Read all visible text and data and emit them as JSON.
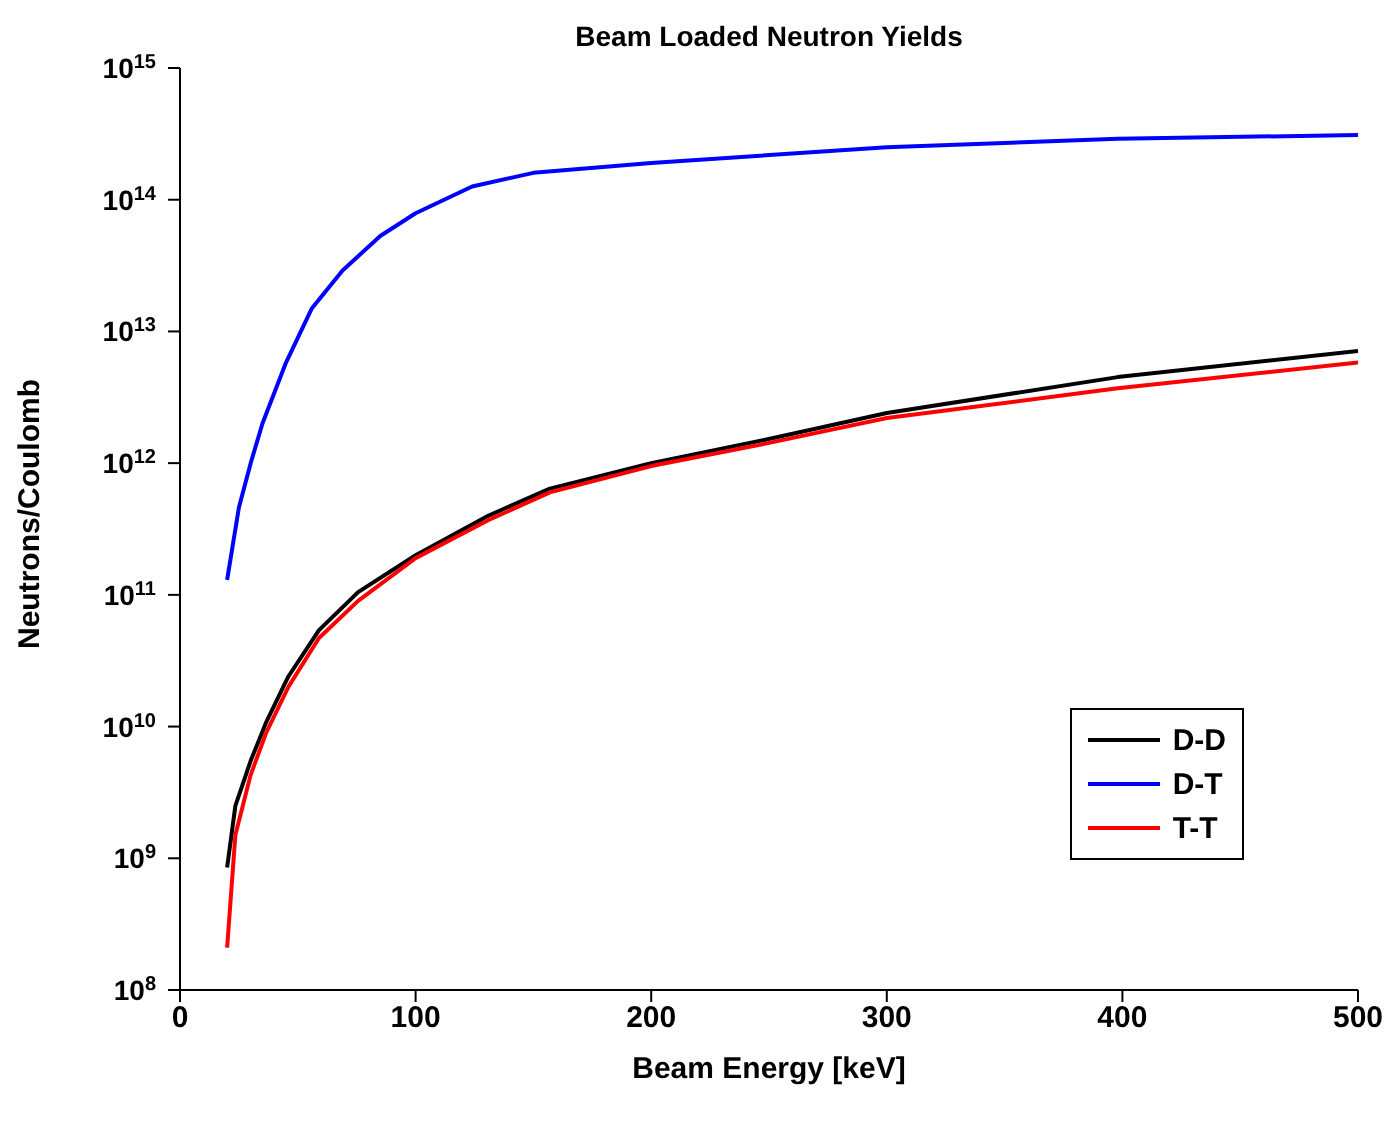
{
  "chart_data": {
    "type": "line",
    "title": "Beam Loaded Neutron Yields",
    "xlabel": "Beam Energy [keV]",
    "ylabel": "Neutrons/Coulomb",
    "log": "y",
    "grid": false,
    "legend": "bottom right",
    "line_style": "solid",
    "marker": "none",
    "xlim": [
      0,
      500
    ],
    "xticks": [
      0,
      100,
      200,
      300,
      400,
      500
    ],
    "ylim": [
      100000000.0,
      1000000000000000.0
    ],
    "yticks": [
      {
        "value": 100000000.0,
        "label": "10$^{8}$"
      },
      {
        "value": 1000000000.0,
        "label": "10$^{9}$"
      },
      {
        "value": 10000000000.0,
        "label": "10$^{10}$"
      },
      {
        "value": 100000000000.0,
        "label": "10$^{11}$"
      },
      {
        "value": 1000000000000.0,
        "label": "10$^{12}$"
      },
      {
        "value": 10000000000000.0,
        "label": "10$^{13}$"
      },
      {
        "value": 100000000000000.0,
        "label": "10$^{14}$"
      },
      {
        "value": 1000000000000000.0,
        "label": "10$^{15}$"
      }
    ],
    "series": [
      {
        "name": "D-D",
        "color": "#000000",
        "x": [
          20,
          23.5,
          30,
          36.5,
          46,
          59,
          75.6,
          100,
          131,
          157,
          200,
          248,
          300,
          398,
          500
        ],
        "values": [
          850000000.0,
          2500000000.0,
          5500000000.0,
          10700000000.0,
          24000000000.0,
          54000000000.0,
          105000000000.0,
          200000000000.0,
          400000000000.0,
          640000000000.0,
          1000000000000.0,
          1500000000000.0,
          2400000000000.0,
          4500000000000.0,
          7100000000000.0
        ]
      },
      {
        "name": "D-T",
        "color": "#0000ff",
        "x": [
          20,
          25,
          30,
          35,
          45,
          56,
          69,
          85,
          100,
          124,
          150,
          200,
          300,
          398,
          500
        ],
        "values": [
          130000000000.0,
          460000000000.0,
          1000000000000.0,
          2000000000000.0,
          5800000000000.0,
          15000000000000.0,
          29000000000000.0,
          53000000000000.0,
          79000000000000.0,
          126000000000000.0,
          160000000000000.0,
          190000000000000.0,
          250000000000000.0,
          290000000000000.0,
          310000000000000.0
        ]
      },
      {
        "name": "T-T",
        "color": "#ff0000",
        "x": [
          20,
          23.5,
          30,
          36.5,
          46,
          59,
          75.6,
          100,
          131,
          157,
          200,
          248,
          300,
          398,
          500
        ],
        "values": [
          210000000.0,
          1500000000.0,
          4300000000.0,
          8900000000.0,
          20000000000.0,
          47000000000.0,
          90000000000.0,
          190000000000.0,
          370000000000.0,
          600000000000.0,
          950000000000.0,
          1400000000000.0,
          2200000000000.0,
          3700000000000.0,
          5800000000000.0
        ]
      }
    ]
  }
}
